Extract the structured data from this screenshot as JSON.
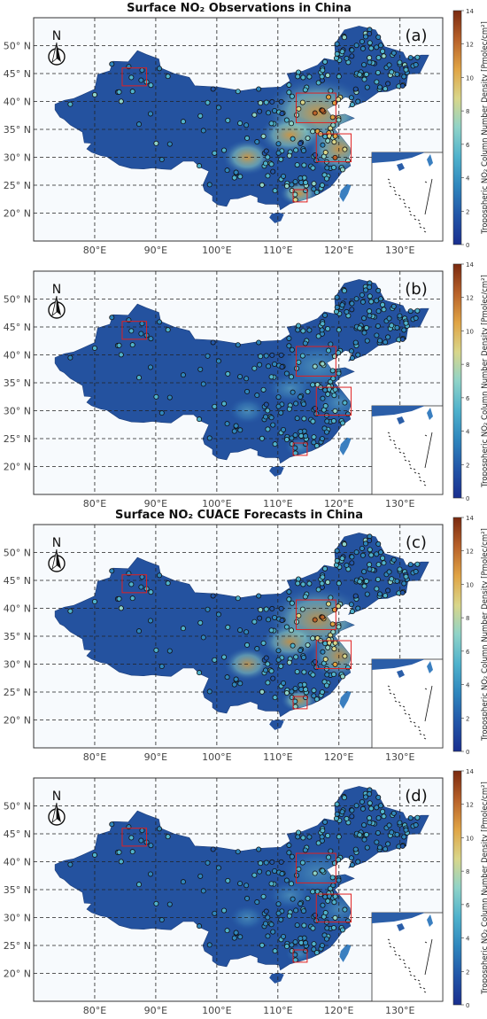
{
  "panels": [
    {
      "id": "a",
      "title": "Surface NO₂ Observations in China",
      "letter": "(a)",
      "intensity": 1.0
    },
    {
      "id": "b",
      "title": "",
      "letter": "(b)",
      "intensity": 0.35
    },
    {
      "id": "c",
      "title": "Surface NO₂ CUACE Forecasts in China",
      "letter": "(c)",
      "intensity": 0.85
    },
    {
      "id": "d",
      "title": "",
      "letter": "(d)",
      "intensity": 0.25
    }
  ],
  "map": {
    "lat_ticks": [
      "50° N",
      "45° N",
      "40° N",
      "35° N",
      "30° N",
      "25° N",
      "20° N"
    ],
    "lon_ticks": [
      "80°E",
      "90°E",
      "100°E",
      "110°E",
      "120°E",
      "130°E"
    ],
    "north_label": "N"
  },
  "colorbar": {
    "label": "Tropospheric NO₂ Column Number Density [Pmolec/cm²]",
    "ticks": [
      "14",
      "12",
      "10",
      "8",
      "6",
      "4",
      "2",
      "0"
    ],
    "range": [
      0,
      14
    ],
    "colors": [
      "#1a2f8f",
      "#2256a8",
      "#2f86bd",
      "#4fb2cc",
      "#8fd3c8",
      "#d9d68a",
      "#e0a445",
      "#b8622a",
      "#7a2a10"
    ]
  }
}
